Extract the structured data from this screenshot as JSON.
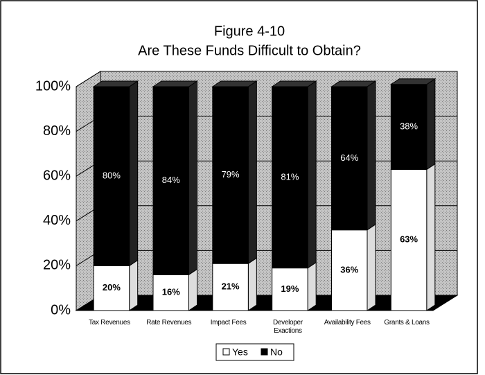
{
  "chart_data": {
    "type": "bar3d_stacked",
    "title": "Figure 4-10",
    "subtitle": "Are These Funds Difficult to Obtain?",
    "categories": [
      "Tax Revenues",
      "Rate Revenues",
      "Impact Fees",
      "Developer Exactions",
      "Availability Fees",
      "Grants & Loans"
    ],
    "series": [
      {
        "name": "Yes",
        "color": "#ffffff",
        "values": [
          20,
          16,
          21,
          19,
          36,
          63
        ],
        "value_labels": [
          "20%",
          "16%",
          "21%",
          "19%",
          "36%",
          "63%"
        ]
      },
      {
        "name": "No",
        "color": "#000000",
        "values": [
          80,
          84,
          79,
          81,
          64,
          38
        ],
        "value_labels": [
          "80%",
          "84%",
          "79%",
          "81%",
          "64%",
          "38%"
        ]
      }
    ],
    "ylim": [
      0,
      100
    ],
    "yticks": [
      {
        "value": 0,
        "label": "0%"
      },
      {
        "value": 20,
        "label": "20%"
      },
      {
        "value": 40,
        "label": "40%"
      },
      {
        "value": 60,
        "label": "60%"
      },
      {
        "value": 80,
        "label": "80%"
      },
      {
        "value": 100,
        "label": "100%"
      }
    ],
    "grid": true,
    "legend": "bottom"
  }
}
